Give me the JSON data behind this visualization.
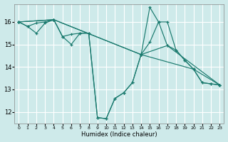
{
  "xlabel": "Humidex (Indice chaleur)",
  "bg_color": "#ceeaea",
  "grid_color": "#ffffff",
  "line_color": "#1a7a6e",
  "xlim": [
    -0.5,
    23.5
  ],
  "ylim": [
    11.5,
    16.8
  ],
  "yticks": [
    12,
    13,
    14,
    15,
    16
  ],
  "xticks": [
    0,
    1,
    2,
    3,
    4,
    5,
    6,
    7,
    8,
    9,
    10,
    11,
    12,
    13,
    14,
    15,
    16,
    17,
    18,
    19,
    20,
    21,
    22,
    23
  ],
  "lines": [
    {
      "x": [
        0,
        1,
        2,
        3,
        4,
        5,
        6,
        7,
        8,
        9,
        10,
        11,
        12,
        13,
        14,
        15,
        16,
        17,
        18,
        19,
        20,
        21,
        22,
        23
      ],
      "y": [
        16.0,
        15.8,
        15.95,
        16.0,
        16.1,
        15.35,
        15.45,
        15.5,
        15.5,
        11.75,
        11.7,
        12.6,
        12.85,
        13.3,
        14.55,
        16.65,
        16.0,
        16.0,
        14.75,
        14.3,
        13.9,
        13.3,
        13.25,
        13.2
      ]
    },
    {
      "x": [
        0,
        1,
        2,
        3,
        4,
        5,
        6,
        7,
        8,
        9,
        10,
        11,
        12,
        13,
        14,
        15,
        16,
        17,
        18,
        19,
        20,
        21,
        22,
        23
      ],
      "y": [
        16.0,
        15.8,
        15.5,
        15.95,
        16.1,
        15.35,
        15.0,
        15.5,
        15.5,
        11.75,
        11.7,
        12.6,
        12.85,
        13.3,
        14.55,
        15.1,
        16.0,
        14.95,
        14.75,
        14.3,
        13.9,
        13.3,
        13.25,
        13.2
      ]
    },
    {
      "x": [
        0,
        4,
        14,
        17,
        23
      ],
      "y": [
        16.0,
        16.1,
        14.55,
        14.95,
        13.2
      ]
    },
    {
      "x": [
        0,
        4,
        14,
        20,
        23
      ],
      "y": [
        16.0,
        16.1,
        14.55,
        13.9,
        13.2
      ]
    }
  ]
}
